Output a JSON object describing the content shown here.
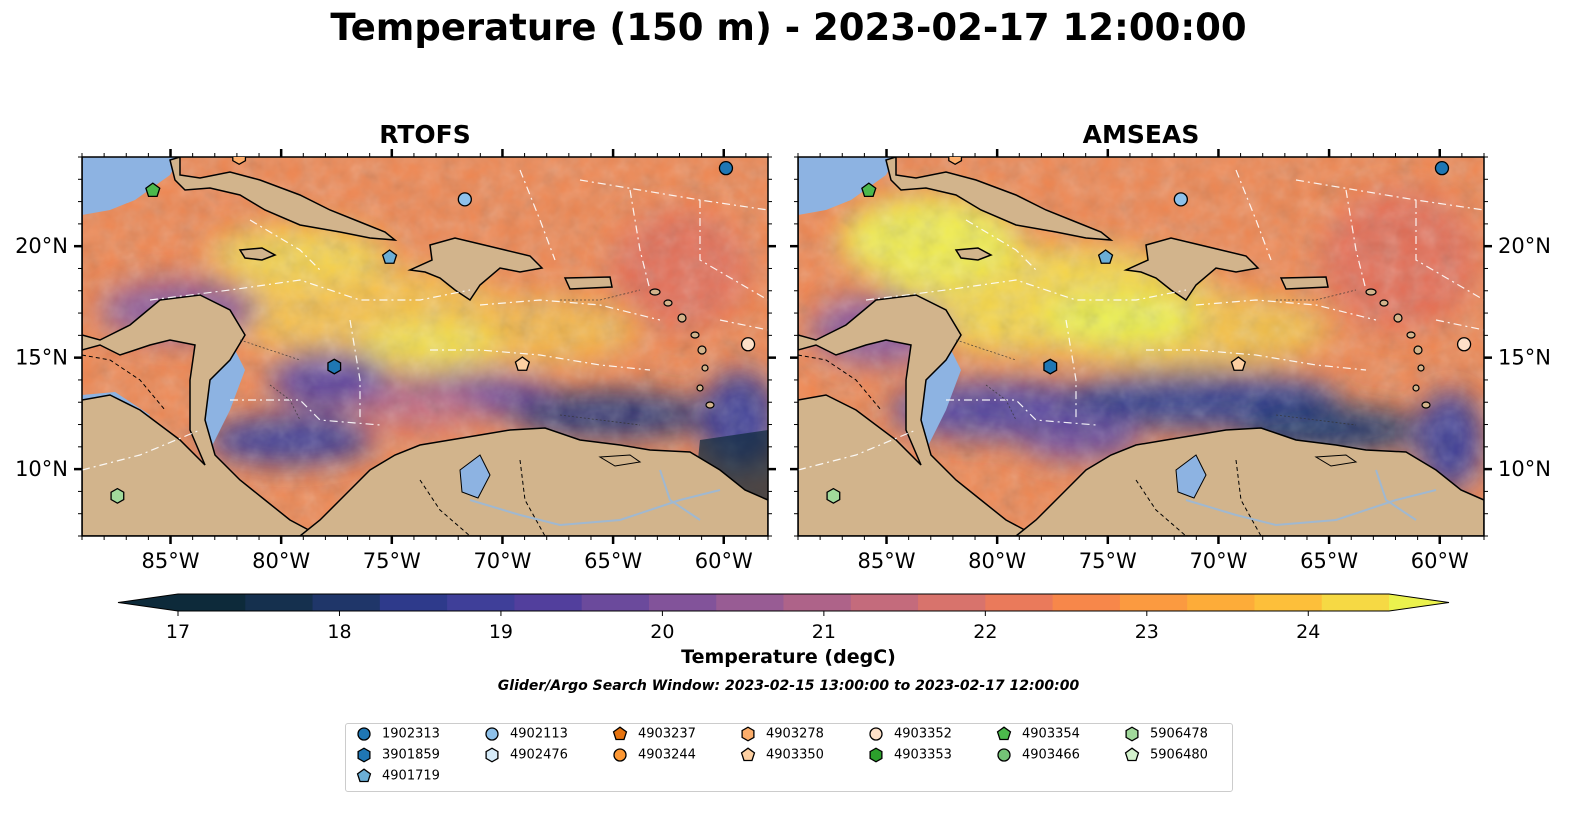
{
  "title": "Temperature (150 m) - 2023-02-17 12:00:00",
  "panels": [
    {
      "title": "RTOFS"
    },
    {
      "title": "AMSEAS"
    }
  ],
  "colorbar": {
    "label": "Temperature (degC)",
    "ticks": [
      "17",
      "18",
      "19",
      "20",
      "21",
      "22",
      "23",
      "24"
    ],
    "range": [
      17,
      24.5
    ],
    "colors": [
      "#0d2a3a",
      "#15304e",
      "#1f3669",
      "#2e3a8b",
      "#3f3f99",
      "#523f9d",
      "#6b4a9c",
      "#82539a",
      "#985c94",
      "#ae6389",
      "#c46b7c",
      "#d8736c",
      "#ea7a5b",
      "#f7874a",
      "#fb9a40",
      "#fdac39",
      "#fdbf3a",
      "#f6d944",
      "#ebf24d"
    ],
    "extend": "both"
  },
  "search_window": "Glider/Argo Search Window: 2023-02-15 13:00:00 to 2023-02-17 12:00:00",
  "axes": {
    "lon_ticks": [
      "85°W",
      "80°W",
      "75°W",
      "70°W",
      "65°W",
      "60°W"
    ],
    "lat_ticks": [
      "20°N",
      "15°N",
      "10°N"
    ],
    "lon_range": [
      -89,
      -58
    ],
    "lat_range": [
      7,
      24
    ]
  },
  "chart_data": {
    "type": "heatmap",
    "variable": "Temperature (150 m)",
    "units": "degC",
    "clim": [
      17,
      24.5
    ],
    "panels": [
      "RTOFS",
      "AMSEAS"
    ],
    "legend_location": "bottom"
  },
  "legend": [
    {
      "id": "1902313",
      "shape": "circle",
      "color": "#1f77b4"
    },
    {
      "id": "3901859",
      "shape": "hexagon",
      "color": "#1f77b4"
    },
    {
      "id": "4901719",
      "shape": "pentagon",
      "color": "#6baed6"
    },
    {
      "id": "4902113",
      "shape": "circle",
      "color": "#8ec1ea"
    },
    {
      "id": "4902476",
      "shape": "hexagon",
      "color": "#d6ebf8"
    },
    {
      "id": "4903237",
      "shape": "pentagon",
      "color": "#e6730f"
    },
    {
      "id": "4903244",
      "shape": "circle",
      "color": "#fd9834"
    },
    {
      "id": "4903278",
      "shape": "hexagon",
      "color": "#fdae6b"
    },
    {
      "id": "4903350",
      "shape": "pentagon",
      "color": "#fdd0a2"
    },
    {
      "id": "4903352",
      "shape": "circle",
      "color": "#fde0c8"
    },
    {
      "id": "4903353",
      "shape": "hexagon",
      "color": "#2ca02c"
    },
    {
      "id": "4903354",
      "shape": "pentagon",
      "color": "#4cb84c"
    },
    {
      "id": "4903466",
      "shape": "circle",
      "color": "#74c476"
    },
    {
      "id": "5906478",
      "shape": "hexagon",
      "color": "#a1d99b"
    },
    {
      "id": "5906480",
      "shape": "pentagon",
      "color": "#d4f2cd"
    }
  ],
  "markers": [
    {
      "id": "4903278",
      "lon": -81.9,
      "lat": 24.0
    },
    {
      "id": "4903354",
      "lon": -85.8,
      "lat": 22.5
    },
    {
      "id": "4902113",
      "lon": -71.7,
      "lat": 22.1
    },
    {
      "id": "1902313",
      "lon": -59.9,
      "lat": 23.5
    },
    {
      "id": "4901719",
      "lon": -75.1,
      "lat": 19.5
    },
    {
      "id": "3901859",
      "lon": -77.6,
      "lat": 14.6
    },
    {
      "id": "4903350",
      "lon": -69.1,
      "lat": 14.7
    },
    {
      "id": "4903352",
      "lon": -58.9,
      "lat": 15.6
    },
    {
      "id": "5906478",
      "lon": -87.4,
      "lat": 8.8
    }
  ]
}
